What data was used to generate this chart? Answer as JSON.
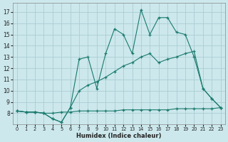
{
  "xlabel": "Humidex (Indice chaleur)",
  "ylabel": "",
  "bg_color": "#cce8ec",
  "grid_color": "#aacdd4",
  "line_color": "#1a7a6e",
  "xlim": [
    -0.5,
    23.5
  ],
  "ylim": [
    7.0,
    17.8
  ],
  "xticks": [
    0,
    1,
    2,
    3,
    4,
    5,
    6,
    7,
    8,
    9,
    10,
    11,
    12,
    13,
    14,
    15,
    16,
    17,
    18,
    19,
    20,
    21,
    22,
    23
  ],
  "yticks": [
    8,
    9,
    10,
    11,
    12,
    13,
    14,
    15,
    16,
    17
  ],
  "line1_x": [
    0,
    1,
    2,
    3,
    4,
    5,
    6,
    7,
    8,
    9,
    10,
    11,
    12,
    13,
    14,
    15,
    16,
    17,
    18,
    19,
    20,
    21,
    22,
    23
  ],
  "line1_y": [
    8.2,
    8.1,
    8.1,
    8.0,
    7.5,
    7.2,
    8.5,
    12.8,
    13.0,
    10.2,
    13.3,
    15.5,
    15.0,
    13.3,
    17.2,
    15.0,
    16.5,
    16.5,
    15.2,
    15.0,
    13.0,
    10.2,
    9.3,
    8.5
  ],
  "line2_x": [
    0,
    1,
    2,
    3,
    4,
    5,
    6,
    7,
    8,
    9,
    10,
    11,
    12,
    13,
    14,
    15,
    16,
    17,
    18,
    19,
    20,
    21,
    22,
    23
  ],
  "line2_y": [
    8.2,
    8.1,
    8.1,
    8.0,
    7.5,
    7.2,
    8.5,
    10.0,
    10.5,
    10.8,
    11.2,
    11.7,
    12.2,
    12.5,
    13.0,
    13.3,
    12.5,
    12.8,
    13.0,
    13.3,
    13.5,
    10.2,
    9.3,
    8.5
  ],
  "line3_x": [
    0,
    1,
    2,
    3,
    4,
    5,
    6,
    7,
    8,
    9,
    10,
    11,
    12,
    13,
    14,
    15,
    16,
    17,
    18,
    19,
    20,
    21,
    22,
    23
  ],
  "line3_y": [
    8.2,
    8.1,
    8.1,
    8.0,
    8.0,
    8.1,
    8.1,
    8.2,
    8.2,
    8.2,
    8.2,
    8.2,
    8.3,
    8.3,
    8.3,
    8.3,
    8.3,
    8.3,
    8.4,
    8.4,
    8.4,
    8.4,
    8.4,
    8.5
  ]
}
